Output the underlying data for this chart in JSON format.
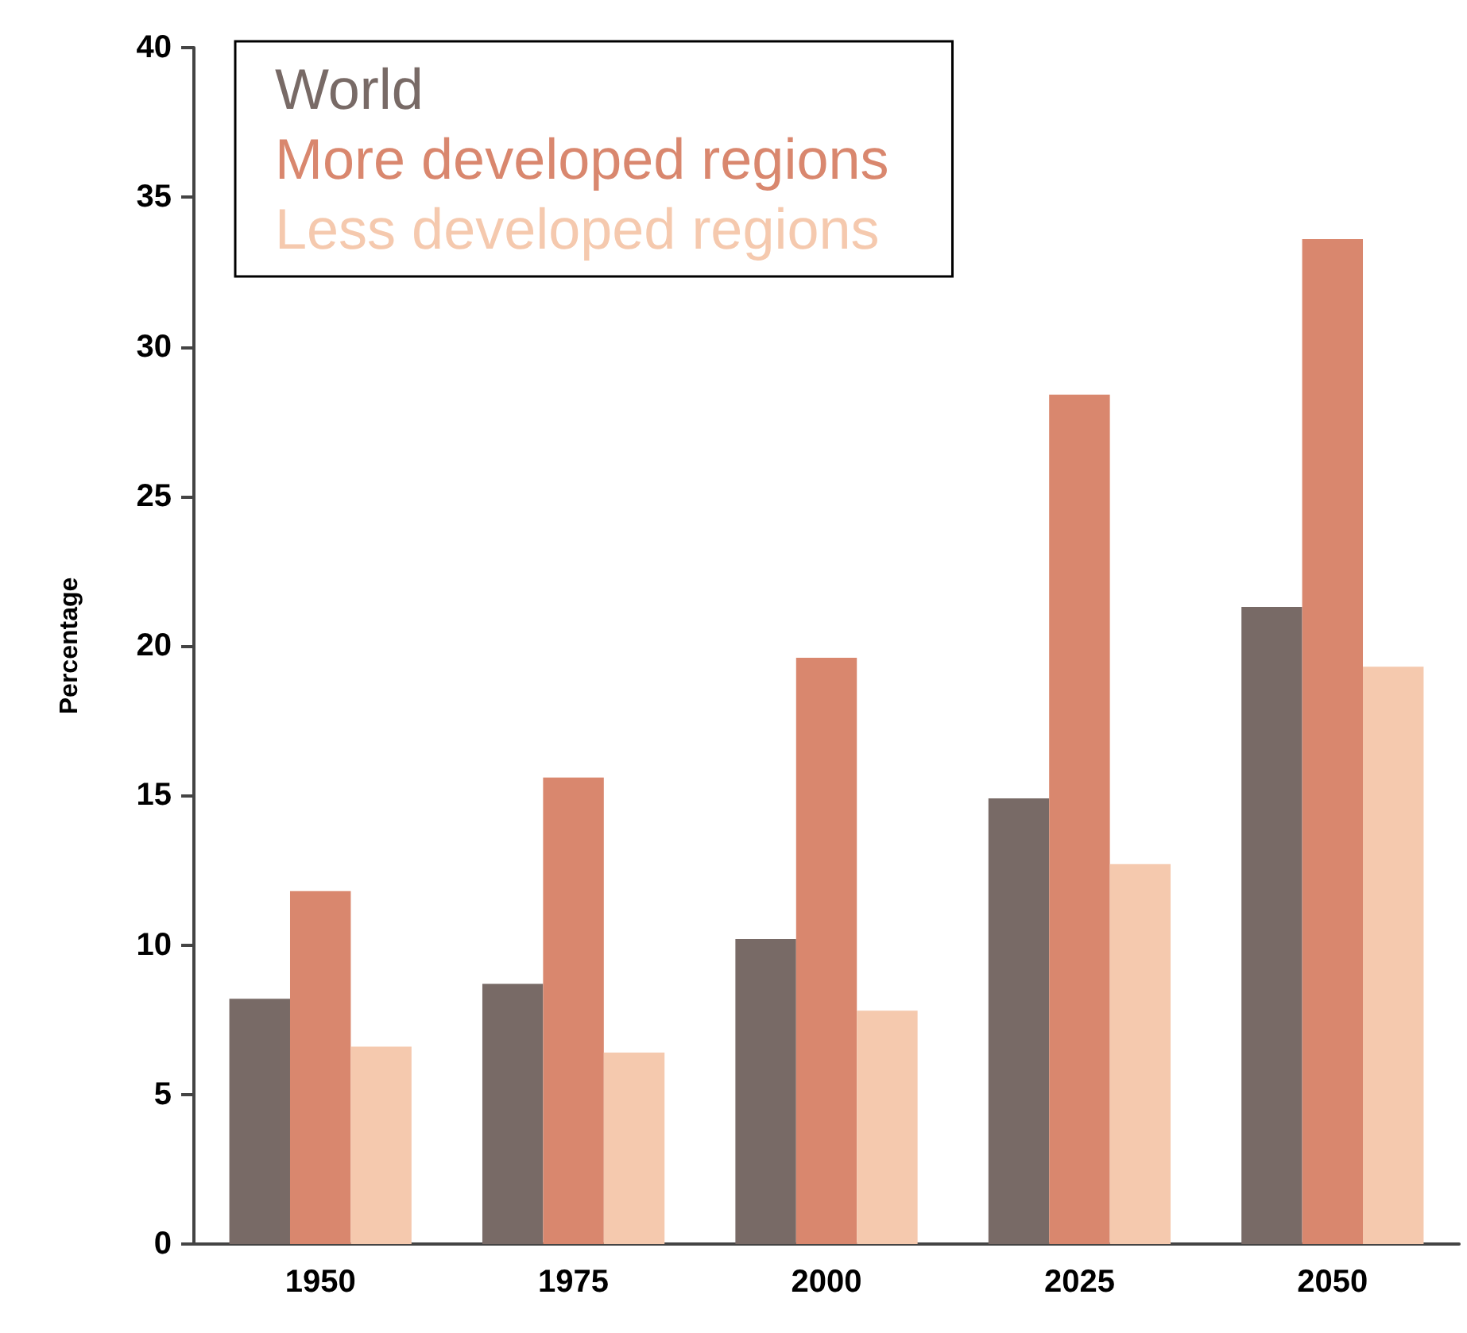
{
  "chart_data": {
    "type": "bar",
    "ylabel": "Percentage",
    "categories": [
      "1950",
      "1975",
      "2000",
      "2025",
      "2050"
    ],
    "series": [
      {
        "name": "World",
        "color": "#786a66",
        "values": [
          8.2,
          8.7,
          10.2,
          14.9,
          21.3
        ]
      },
      {
        "name": "More developed regions",
        "color": "#d9876e",
        "values": [
          11.8,
          15.6,
          19.6,
          28.4,
          33.6
        ]
      },
      {
        "name": "Less developed regions",
        "color": "#f5c9ae",
        "values": [
          6.6,
          6.4,
          7.8,
          12.7,
          19.3
        ]
      }
    ],
    "ylim": [
      0,
      40
    ],
    "yticks": [
      0,
      5,
      10,
      15,
      20,
      25,
      30,
      35,
      40
    ],
    "grid": false,
    "legend": "top left"
  }
}
